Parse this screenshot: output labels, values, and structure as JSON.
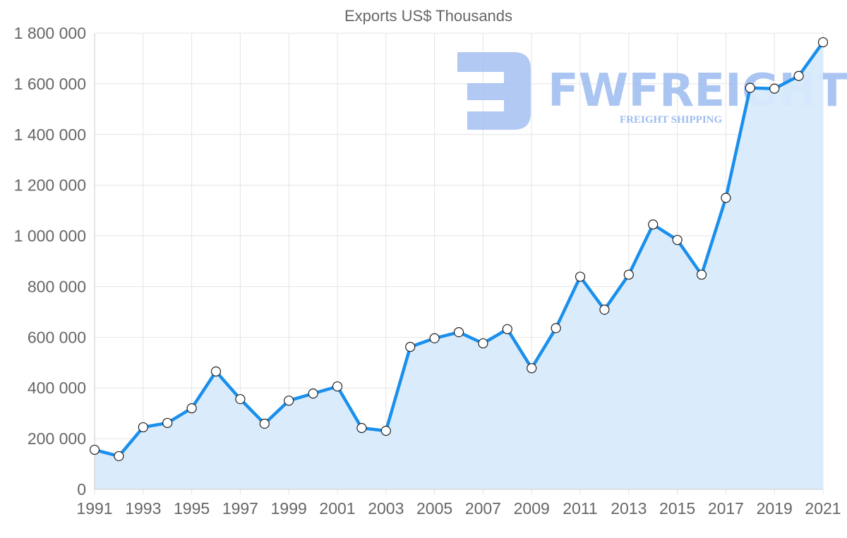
{
  "chart_data": {
    "type": "line",
    "title": "Exports US$ Thousands",
    "xlabel": "",
    "ylabel": "",
    "ylim": [
      0,
      1800000
    ],
    "yticks": [
      0,
      200000,
      400000,
      600000,
      800000,
      1000000,
      1200000,
      1400000,
      1600000,
      1800000
    ],
    "ytick_labels": [
      "0",
      "200 000",
      "400 000",
      "600 000",
      "800 000",
      "1 000 000",
      "1 200 000",
      "1 400 000",
      "1 600 000",
      "1 800 000"
    ],
    "xtick_labels": [
      "1991",
      "1993",
      "1995",
      "1997",
      "1999",
      "2001",
      "2003",
      "2005",
      "2007",
      "2009",
      "2011",
      "2013",
      "2015",
      "2017",
      "2019",
      "2021"
    ],
    "grid": true,
    "fill": "area",
    "x": [
      1991,
      1992,
      1993,
      1994,
      1995,
      1996,
      1997,
      1998,
      1999,
      2000,
      2001,
      2002,
      2003,
      2004,
      2005,
      2006,
      2007,
      2008,
      2009,
      2010,
      2011,
      2012,
      2013,
      2014,
      2015,
      2016,
      2017,
      2018,
      2019,
      2020,
      2021
    ],
    "series": [
      {
        "name": "Exports",
        "color": "#1a8fec",
        "fill_color": "#d8ebfc",
        "values": [
          156000,
          131000,
          245000,
          262000,
          320000,
          465000,
          356000,
          259000,
          350000,
          378000,
          406000,
          242000,
          231000,
          562000,
          596000,
          620000,
          576000,
          632000,
          478000,
          636000,
          839000,
          709000,
          847000,
          1045000,
          984000,
          847000,
          1150000,
          1584000,
          1581000,
          1631000,
          1764000
        ]
      }
    ]
  },
  "watermark": {
    "brand": "FWFREIGHT",
    "tagline": "FREIGHT SHIPPING"
  }
}
